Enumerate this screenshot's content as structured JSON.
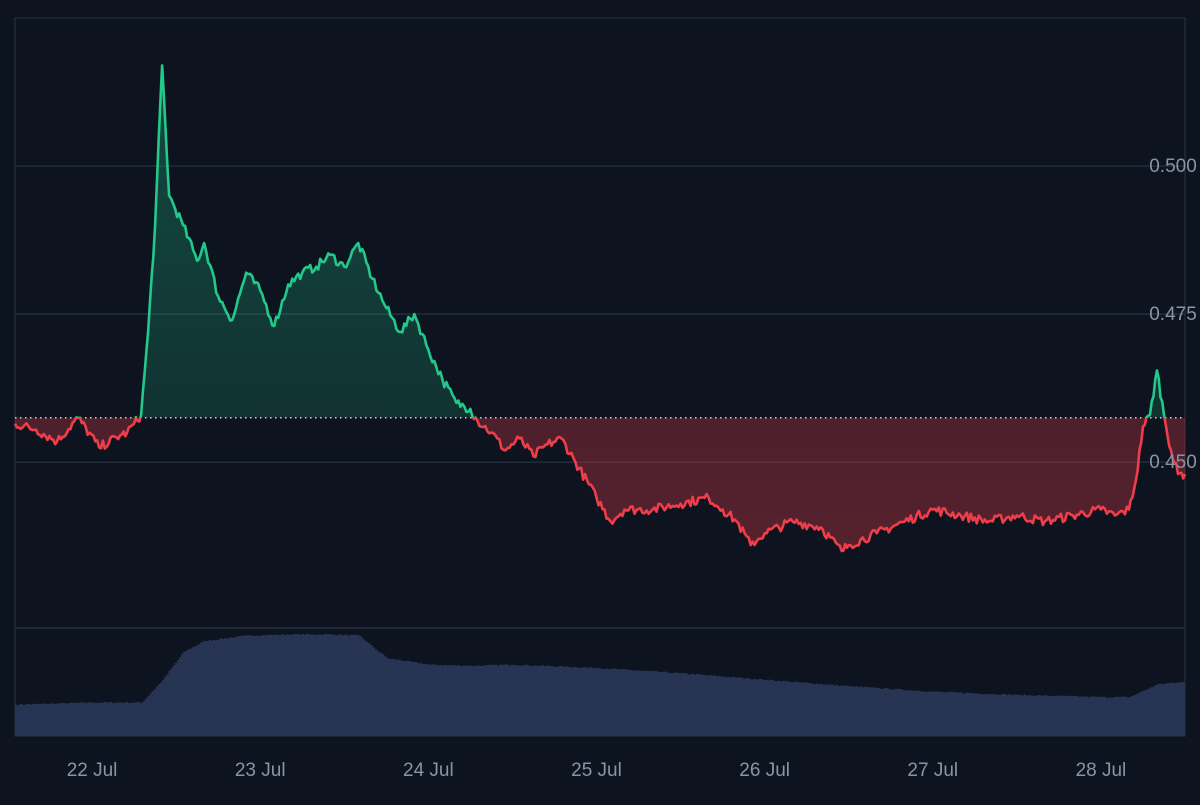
{
  "colors": {
    "background": "#0d1420",
    "grid": "#2a3342",
    "axis_text": "#8b93a7",
    "up": "#22c98a",
    "down": "#ef3e4a",
    "baseline": "#c8cdd6",
    "volume": "#273453"
  },
  "chart_data": {
    "type": "area",
    "xlabel": "",
    "ylabel": "",
    "x_ticks": [
      "22 Jul",
      "23 Jul",
      "24 Jul",
      "25 Jul",
      "26 Jul",
      "27 Jul",
      "28 Jul"
    ],
    "y_ticks": [
      0.5,
      0.475,
      0.45
    ],
    "y_tick_labels": [
      "0.500",
      "0.475",
      "0.450"
    ],
    "ylim": [
      0.422,
      0.525
    ],
    "xlim": [
      "2024-07-21 13:00",
      "2024-07-28 12:00"
    ],
    "baseline": 0.4575,
    "baseline_style": "dotted",
    "grid": true,
    "series": [
      {
        "values": [
          [
            "2024-07-21 13:00",
            0.4565
          ],
          [
            "2024-07-21 16:00",
            0.4555
          ],
          [
            "2024-07-21 19:00",
            0.4535
          ],
          [
            "2024-07-21 22:00",
            0.4575
          ],
          [
            "2024-07-22 01:00",
            0.4525
          ],
          [
            "2024-07-22 04:00",
            0.4545
          ],
          [
            "2024-07-22 05:00",
            0.455
          ],
          [
            "2024-07-22 06:00",
            0.4565
          ],
          [
            "2024-07-22 07:00",
            0.458
          ],
          [
            "2024-07-22 08:00",
            0.472
          ],
          [
            "2024-07-22 09:00",
            0.49
          ],
          [
            "2024-07-22 10:00",
            0.517
          ],
          [
            "2024-07-22 11:00",
            0.495
          ],
          [
            "2024-07-22 13:00",
            0.49
          ],
          [
            "2024-07-22 15:00",
            0.484
          ],
          [
            "2024-07-22 16:00",
            0.487
          ],
          [
            "2024-07-22 18:00",
            0.478
          ],
          [
            "2024-07-22 20:00",
            0.474
          ],
          [
            "2024-07-22 22:00",
            0.482
          ],
          [
            "2024-07-23 00:00",
            0.479
          ],
          [
            "2024-07-23 02:00",
            0.473
          ],
          [
            "2024-07-23 04:00",
            0.48
          ],
          [
            "2024-07-23 06:00",
            0.482
          ],
          [
            "2024-07-23 08:00",
            0.483
          ],
          [
            "2024-07-23 10:00",
            0.485
          ],
          [
            "2024-07-23 12:00",
            0.483
          ],
          [
            "2024-07-23 14:00",
            0.487
          ],
          [
            "2024-07-23 16:00",
            0.481
          ],
          [
            "2024-07-23 18:00",
            0.476
          ],
          [
            "2024-07-23 20:00",
            0.472
          ],
          [
            "2024-07-23 22:00",
            0.475
          ],
          [
            "2024-07-24 00:00",
            0.469
          ],
          [
            "2024-07-24 02:00",
            0.464
          ],
          [
            "2024-07-24 04:00",
            0.46
          ],
          [
            "2024-07-24 06:00",
            0.459
          ],
          [
            "2024-07-24 07:00",
            0.457
          ],
          [
            "2024-07-24 09:00",
            0.455
          ],
          [
            "2024-07-24 11:00",
            0.452
          ],
          [
            "2024-07-24 13:00",
            0.454
          ],
          [
            "2024-07-24 15:00",
            0.451
          ],
          [
            "2024-07-24 17:00",
            0.453
          ],
          [
            "2024-07-24 19:00",
            0.454
          ],
          [
            "2024-07-24 21:00",
            0.45
          ],
          [
            "2024-07-25 00:00",
            0.444
          ],
          [
            "2024-07-25 02:00",
            0.44
          ],
          [
            "2024-07-25 04:00",
            0.442
          ],
          [
            "2024-07-25 08:00",
            0.442
          ],
          [
            "2024-07-25 12:00",
            0.443
          ],
          [
            "2024-07-25 16:00",
            0.444
          ],
          [
            "2024-07-25 18:00",
            0.442
          ],
          [
            "2024-07-25 20:00",
            0.44
          ],
          [
            "2024-07-25 22:00",
            0.436
          ],
          [
            "2024-07-26 00:00",
            0.438
          ],
          [
            "2024-07-26 04:00",
            0.44
          ],
          [
            "2024-07-26 08:00",
            0.439
          ],
          [
            "2024-07-26 11:00",
            0.435
          ],
          [
            "2024-07-26 12:00",
            0.436
          ],
          [
            "2024-07-26 16:00",
            0.438
          ],
          [
            "2024-07-26 20:00",
            0.44
          ],
          [
            "2024-07-27 00:00",
            0.442
          ],
          [
            "2024-07-27 04:00",
            0.441
          ],
          [
            "2024-07-27 08:00",
            0.44
          ],
          [
            "2024-07-27 12:00",
            0.441
          ],
          [
            "2024-07-27 16:00",
            0.44
          ],
          [
            "2024-07-27 20:00",
            0.441
          ],
          [
            "2024-07-28 00:00",
            0.442
          ],
          [
            "2024-07-28 02:00",
            0.441
          ],
          [
            "2024-07-28 04:00",
            0.442
          ],
          [
            "2024-07-28 05:00",
            0.447
          ],
          [
            "2024-07-28 06:00",
            0.456
          ],
          [
            "2024-07-28 07:00",
            0.458
          ],
          [
            "2024-07-28 08:00",
            0.4655
          ],
          [
            "2024-07-28 09:00",
            0.458
          ],
          [
            "2024-07-28 10:00",
            0.452
          ],
          [
            "2024-07-28 11:00",
            0.448
          ],
          [
            "2024-07-28 12:00",
            0.448
          ]
        ]
      }
    ],
    "volume": {
      "ylim": [
        0,
        1
      ],
      "values": [
        [
          "2024-07-21 13:00",
          0.29
        ],
        [
          "2024-07-22 00:00",
          0.31
        ],
        [
          "2024-07-22 07:00",
          0.31
        ],
        [
          "2024-07-22 10:00",
          0.52
        ],
        [
          "2024-07-22 13:00",
          0.78
        ],
        [
          "2024-07-22 16:00",
          0.88
        ],
        [
          "2024-07-22 22:00",
          0.93
        ],
        [
          "2024-07-23 04:00",
          0.94
        ],
        [
          "2024-07-23 10:00",
          0.94
        ],
        [
          "2024-07-23 14:00",
          0.93
        ],
        [
          "2024-07-23 16:00",
          0.82
        ],
        [
          "2024-07-23 18:00",
          0.72
        ],
        [
          "2024-07-24 00:00",
          0.66
        ],
        [
          "2024-07-24 06:00",
          0.65
        ],
        [
          "2024-07-24 12:00",
          0.66
        ],
        [
          "2024-07-25 00:00",
          0.63
        ],
        [
          "2024-07-25 12:00",
          0.58
        ],
        [
          "2024-07-26 00:00",
          0.52
        ],
        [
          "2024-07-26 12:00",
          0.46
        ],
        [
          "2024-07-27 00:00",
          0.41
        ],
        [
          "2024-07-27 12:00",
          0.38
        ],
        [
          "2024-07-28 00:00",
          0.36
        ],
        [
          "2024-07-28 04:00",
          0.36
        ],
        [
          "2024-07-28 06:00",
          0.42
        ],
        [
          "2024-07-28 08:00",
          0.48
        ],
        [
          "2024-07-28 12:00",
          0.5
        ]
      ]
    }
  }
}
